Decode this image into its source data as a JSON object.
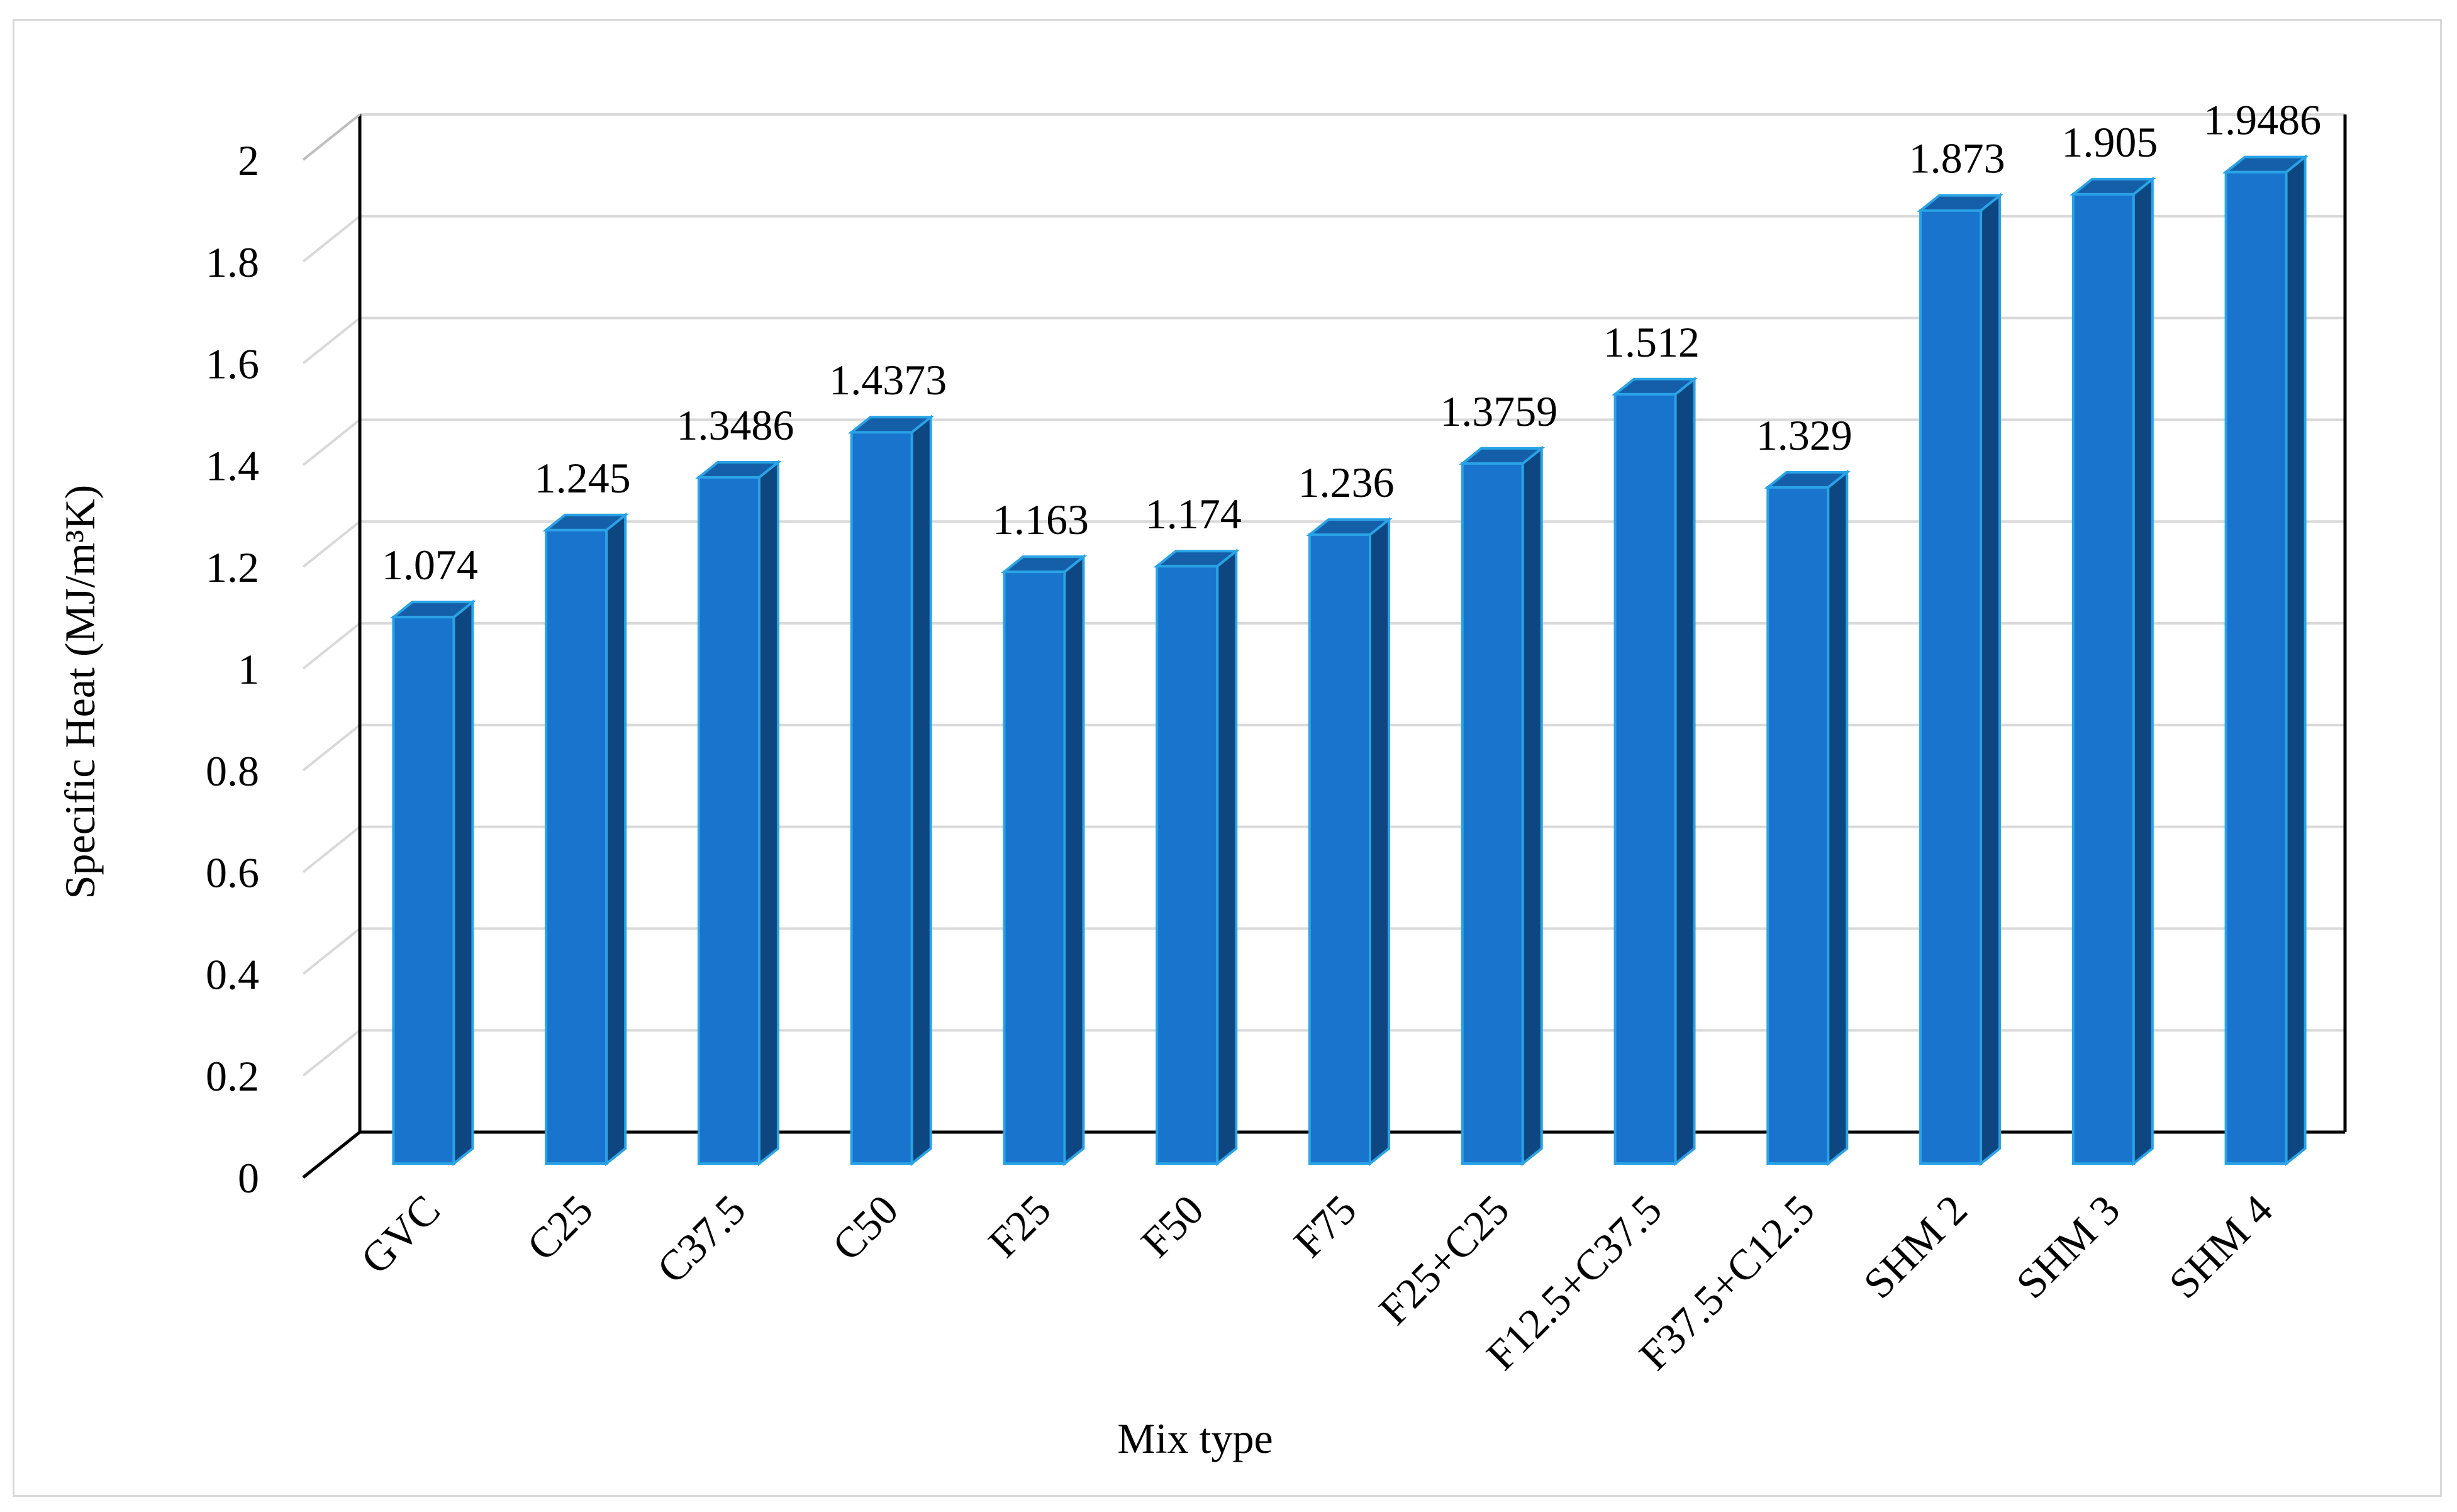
{
  "chart_data": {
    "type": "bar",
    "style": "3d-column",
    "categories": [
      "GVC",
      "C25",
      "C37.5",
      "C50",
      "F25",
      "F50",
      "F75",
      "F25+C25",
      "F12.5+C37.5",
      "F37.5+C12.5",
      "SHM 2",
      "SHM 3",
      "SHM 4"
    ],
    "values": [
      1.074,
      1.245,
      1.3486,
      1.4373,
      1.163,
      1.174,
      1.236,
      1.3759,
      1.512,
      1.329,
      1.873,
      1.905,
      1.9486
    ],
    "data_labels": [
      "1.074",
      "1.245",
      "1.3486",
      "1.4373",
      "1.163",
      "1.174",
      "1.236",
      "1.3759",
      "1.512",
      "1.329",
      "1.873",
      "1.905",
      "1.9486"
    ],
    "xlabel": "Mix type",
    "ylabel": "Specific Heat (MJ/m³K)",
    "ylim": [
      0,
      2
    ],
    "yticks": [
      0,
      0.2,
      0.4,
      0.6,
      0.8,
      1,
      1.2,
      1.4,
      1.6,
      1.8,
      2
    ],
    "ytick_labels": [
      "0",
      "0.2",
      "0.4",
      "0.6",
      "0.8",
      "1",
      "1.2",
      "1.4",
      "1.6",
      "1.8",
      "2"
    ],
    "grid": true,
    "legend": "none",
    "colors": {
      "bar_front": "#1874cd",
      "bar_edge": "#29a3e6",
      "bar_side": "#0d4680",
      "bar_top": "#155fa8",
      "gridline": "#d9d9d9",
      "axis": "#000000"
    }
  }
}
